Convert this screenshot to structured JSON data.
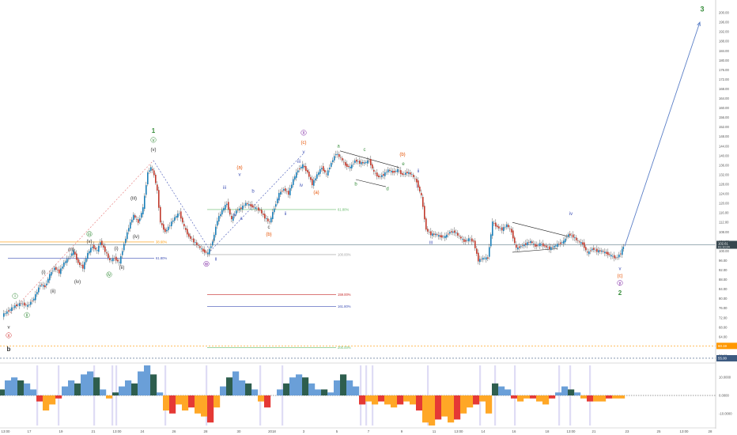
{
  "chart_data": {
    "type": "line",
    "subtype": "candlestick",
    "title": "",
    "xlabel": "",
    "ylabel": "",
    "ylim": [
      54,
      204
    ],
    "y_ticks": [
      56.0,
      60.0,
      64.0,
      68.0,
      72.0,
      76.0,
      80.0,
      84.0,
      88.0,
      92.0,
      96.0,
      100.0,
      104.0,
      108.0,
      112.0,
      116.0,
      120.0,
      124.0,
      128.0,
      132.0,
      136.0,
      140.0,
      144.0,
      148.0,
      152.0,
      156.0,
      160.0,
      164.0,
      168.0,
      172.0,
      176.0,
      180.0,
      184.0,
      188.0,
      192.0,
      196.0,
      200.0
    ],
    "y_tick_labels": [
      "56.00",
      "60.00",
      "64.00",
      "68.00",
      "72.00",
      "76.00",
      "80.00",
      "84.00",
      "88.00",
      "92.00",
      "96.00",
      "100.00",
      "104.00",
      "108.00",
      "112.00",
      "116.00",
      "120.00",
      "124.00",
      "128.00",
      "132.00",
      "136.00",
      "140.00",
      "144.00",
      "148.00",
      "152.00",
      "156.00",
      "160.00",
      "164.00",
      "168.00",
      "172.00",
      "176.00",
      "180.00",
      "184.00",
      "188.00",
      "192.00",
      "196.00",
      "200.00"
    ],
    "x_range": [
      0,
      910
    ],
    "x_ticks": [
      {
        "label": "13:00",
        "x": 7
      },
      {
        "label": "17",
        "x": 37
      },
      {
        "label": "19",
        "x": 77
      },
      {
        "label": "21",
        "x": 118
      },
      {
        "label": "13:00",
        "x": 148
      },
      {
        "label": "24",
        "x": 180
      },
      {
        "label": "26",
        "x": 220
      },
      {
        "label": "28",
        "x": 260
      },
      {
        "label": "30",
        "x": 302
      },
      {
        "label": "2018",
        "x": 344
      },
      {
        "label": "3",
        "x": 384
      },
      {
        "label": "5",
        "x": 426
      },
      {
        "label": "7",
        "x": 466
      },
      {
        "label": "9",
        "x": 508
      },
      {
        "label": "11",
        "x": 549
      },
      {
        "label": "13:00",
        "x": 580
      },
      {
        "label": "14",
        "x": 611
      },
      {
        "label": "16",
        "x": 650
      },
      {
        "label": "18",
        "x": 692
      },
      {
        "label": "13:00",
        "x": 722
      },
      {
        "label": "21",
        "x": 751
      },
      {
        "label": "23",
        "x": 793
      },
      {
        "label": "25",
        "x": 833
      },
      {
        "label": "13:00",
        "x": 865
      },
      {
        "label": "28",
        "x": 898
      }
    ],
    "price_path": [
      [
        4,
        73
      ],
      [
        12,
        75
      ],
      [
        20,
        77
      ],
      [
        28,
        78
      ],
      [
        36,
        77
      ],
      [
        44,
        80
      ],
      [
        52,
        86
      ],
      [
        58,
        85
      ],
      [
        64,
        90
      ],
      [
        70,
        93
      ],
      [
        76,
        91
      ],
      [
        82,
        95
      ],
      [
        88,
        97
      ],
      [
        94,
        100
      ],
      [
        100,
        95
      ],
      [
        106,
        93
      ],
      [
        112,
        99
      ],
      [
        118,
        102
      ],
      [
        124,
        100
      ],
      [
        128,
        104
      ],
      [
        134,
        100
      ],
      [
        140,
        96
      ],
      [
        146,
        97
      ],
      [
        152,
        95
      ],
      [
        158,
        103
      ],
      [
        164,
        110
      ],
      [
        170,
        115
      ],
      [
        176,
        112
      ],
      [
        182,
        118
      ],
      [
        188,
        133
      ],
      [
        192,
        135
      ],
      [
        196,
        132
      ],
      [
        200,
        125
      ],
      [
        204,
        112
      ],
      [
        210,
        108
      ],
      [
        216,
        111
      ],
      [
        222,
        114
      ],
      [
        228,
        116
      ],
      [
        234,
        110
      ],
      [
        240,
        106
      ],
      [
        246,
        104
      ],
      [
        252,
        102
      ],
      [
        258,
        100
      ],
      [
        264,
        99
      ],
      [
        270,
        104
      ],
      [
        276,
        113
      ],
      [
        282,
        117
      ],
      [
        288,
        120
      ],
      [
        294,
        113
      ],
      [
        300,
        117
      ],
      [
        306,
        118
      ],
      [
        312,
        120
      ],
      [
        318,
        119
      ],
      [
        324,
        118
      ],
      [
        330,
        117
      ],
      [
        336,
        114
      ],
      [
        342,
        112
      ],
      [
        348,
        118
      ],
      [
        354,
        124
      ],
      [
        360,
        126
      ],
      [
        366,
        124
      ],
      [
        372,
        130
      ],
      [
        378,
        134
      ],
      [
        384,
        136
      ],
      [
        390,
        133
      ],
      [
        396,
        128
      ],
      [
        402,
        132
      ],
      [
        408,
        135
      ],
      [
        414,
        132
      ],
      [
        420,
        137
      ],
      [
        426,
        141
      ],
      [
        432,
        139
      ],
      [
        438,
        136
      ],
      [
        444,
        135
      ],
      [
        450,
        138
      ],
      [
        456,
        137
      ],
      [
        462,
        137
      ],
      [
        468,
        138
      ],
      [
        474,
        133
      ],
      [
        480,
        131
      ],
      [
        486,
        132
      ],
      [
        492,
        134
      ],
      [
        498,
        133
      ],
      [
        504,
        134
      ],
      [
        510,
        132
      ],
      [
        516,
        133
      ],
      [
        522,
        132
      ],
      [
        528,
        129
      ],
      [
        534,
        123
      ],
      [
        540,
        109
      ],
      [
        546,
        107
      ],
      [
        552,
        107
      ],
      [
        558,
        106
      ],
      [
        564,
        106
      ],
      [
        570,
        108
      ],
      [
        576,
        108
      ],
      [
        582,
        106
      ],
      [
        588,
        104
      ],
      [
        594,
        105
      ],
      [
        600,
        104
      ],
      [
        606,
        96
      ],
      [
        612,
        97
      ],
      [
        618,
        97
      ],
      [
        624,
        112
      ],
      [
        630,
        110
      ],
      [
        636,
        109
      ],
      [
        642,
        111
      ],
      [
        648,
        108
      ],
      [
        654,
        101
      ],
      [
        660,
        102
      ],
      [
        666,
        103
      ],
      [
        672,
        104
      ],
      [
        678,
        102
      ],
      [
        684,
        103
      ],
      [
        690,
        102
      ],
      [
        696,
        101
      ],
      [
        702,
        102
      ],
      [
        708,
        103
      ],
      [
        714,
        104
      ],
      [
        720,
        107
      ],
      [
        726,
        106
      ],
      [
        732,
        104
      ],
      [
        738,
        103
      ],
      [
        744,
        99
      ],
      [
        750,
        101
      ],
      [
        756,
        100
      ],
      [
        762,
        100
      ],
      [
        768,
        99
      ],
      [
        774,
        98
      ],
      [
        780,
        97
      ],
      [
        786,
        99
      ],
      [
        789,
        102
      ]
    ],
    "projection": {
      "from": [
        790,
        102
      ],
      "to": [
        885,
        196
      ],
      "label": "3"
    },
    "current_price": {
      "label": "102.61",
      "sub": "01:10:24",
      "value": 102.61
    },
    "price_markers": [
      {
        "label": "60.19",
        "value": 60.19,
        "color": "#ff9800"
      },
      {
        "label": "55.00",
        "value": 55.0,
        "color": "#3d5a80"
      }
    ],
    "fib_levels": [
      {
        "label": "38.60%",
        "value": 103.8,
        "x1": 0,
        "x2": 195,
        "color": "#ff9800"
      },
      {
        "label": "61.80%",
        "value": 96.9,
        "x1": 10,
        "x2": 195,
        "color": "#3f51b5"
      },
      {
        "label": "61.80%",
        "value": 117.4,
        "x1": 262,
        "x2": 425,
        "color": "#66bb6a"
      },
      {
        "label": "100.00%",
        "value": 98.5,
        "x1": 262,
        "x2": 425,
        "color": "#9e9e9e"
      },
      {
        "label": "159.00%",
        "value": 81.7,
        "x1": 262,
        "x2": 425,
        "color": "#c62828"
      },
      {
        "label": "161.80%",
        "value": 76.8,
        "x1": 262,
        "x2": 425,
        "color": "#3f51b5"
      },
      {
        "label": "200.00%",
        "value": 59.4,
        "x1": 262,
        "x2": 425,
        "color": "#66bb6a"
      }
    ],
    "wave_labels": [
      {
        "t": "v",
        "x": 11,
        "v": 67.5,
        "c": "#333333",
        "s": 6
      },
      {
        "t": "x",
        "x": 11,
        "v": 64.0,
        "c": "#d32f2f",
        "s": 6,
        "circ": true
      },
      {
        "t": "b",
        "x": 11,
        "v": 58.0,
        "c": "#333333",
        "s": 8,
        "bold": true
      },
      {
        "t": "i",
        "x": 19,
        "v": 80.5,
        "c": "#388e3c",
        "s": 6,
        "circ": true
      },
      {
        "t": "ii",
        "x": 34,
        "v": 72.5,
        "c": "#388e3c",
        "s": 6,
        "circ": true
      },
      {
        "t": "(i)",
        "x": 55,
        "v": 90.5,
        "c": "#333333",
        "s": 6
      },
      {
        "t": "(ii)",
        "x": 67,
        "v": 82.5,
        "c": "#333333",
        "s": 6
      },
      {
        "t": "(iii)",
        "x": 90,
        "v": 100.0,
        "c": "#333333",
        "s": 6
      },
      {
        "t": "(iv)",
        "x": 98,
        "v": 86.5,
        "c": "#333333",
        "s": 6
      },
      {
        "t": "iii",
        "x": 113,
        "v": 106.5,
        "c": "#388e3c",
        "s": 6,
        "circ": true
      },
      {
        "t": "(v)",
        "x": 113,
        "v": 103.5,
        "c": "#333333",
        "s": 6
      },
      {
        "t": "(i)",
        "x": 147,
        "v": 100.5,
        "c": "#333333",
        "s": 6
      },
      {
        "t": "(ii)",
        "x": 154,
        "v": 92.5,
        "c": "#333333",
        "s": 6
      },
      {
        "t": "iv",
        "x": 138,
        "v": 89.5,
        "c": "#388e3c",
        "s": 6,
        "circ": true
      },
      {
        "t": "(iii)",
        "x": 169,
        "v": 121.5,
        "c": "#333333",
        "s": 6
      },
      {
        "t": "(iv)",
        "x": 172,
        "v": 105.5,
        "c": "#333333",
        "s": 6
      },
      {
        "t": "1",
        "x": 194,
        "v": 149.5,
        "c": "#388e3c",
        "s": 8,
        "bold": true
      },
      {
        "t": "v",
        "x": 194,
        "v": 146.0,
        "c": "#388e3c",
        "s": 6,
        "circ": true
      },
      {
        "t": "(v)",
        "x": 194,
        "v": 142.0,
        "c": "#333333",
        "s": 6
      },
      {
        "t": "i",
        "x": 270,
        "v": 104.0,
        "c": "#333333",
        "s": 6
      },
      {
        "t": "w",
        "x": 261,
        "v": 94.0,
        "c": "#7b1fa2",
        "s": 6,
        "circ": true
      },
      {
        "t": "ii",
        "x": 273,
        "v": 96.0,
        "c": "#3f51b5",
        "s": 6
      },
      {
        "t": "iii",
        "x": 284,
        "v": 126.0,
        "c": "#3f51b5",
        "s": 6
      },
      {
        "t": "iv",
        "x": 297,
        "v": 114.5,
        "c": "#3f51b5",
        "s": 6
      },
      {
        "t": "(a)",
        "x": 303,
        "v": 134.5,
        "c": "#e65100",
        "s": 6
      },
      {
        "t": "v",
        "x": 303,
        "v": 131.5,
        "c": "#3f51b5",
        "s": 6
      },
      {
        "t": "a",
        "x": 305,
        "v": 113.0,
        "c": "#3f51b5",
        "s": 6
      },
      {
        "t": "b",
        "x": 320,
        "v": 124.5,
        "c": "#3f51b5",
        "s": 6
      },
      {
        "t": "c",
        "x": 340,
        "v": 109.5,
        "c": "#333333",
        "s": 6
      },
      {
        "t": "(b)",
        "x": 340,
        "v": 106.5,
        "c": "#e65100",
        "s": 6
      },
      {
        "t": "ii",
        "x": 361,
        "v": 115.0,
        "c": "#3f51b5",
        "s": 6
      },
      {
        "t": "i",
        "x": 353,
        "v": 121.0,
        "c": "#3f51b5",
        "s": 6
      },
      {
        "t": "x",
        "x": 384,
        "v": 149.0,
        "c": "#7b1fa2",
        "s": 6,
        "circ": true
      },
      {
        "t": "(c)",
        "x": 384,
        "v": 145.0,
        "c": "#e65100",
        "s": 6
      },
      {
        "t": "v",
        "x": 384,
        "v": 141.0,
        "c": "#3f51b5",
        "s": 6
      },
      {
        "t": "iii",
        "x": 378,
        "v": 137.0,
        "c": "#3f51b5",
        "s": 6
      },
      {
        "t": "iv",
        "x": 381,
        "v": 127.0,
        "c": "#3f51b5",
        "s": 6
      },
      {
        "t": "(a)",
        "x": 400,
        "v": 124.0,
        "c": "#e65100",
        "s": 6
      },
      {
        "t": "a",
        "x": 428,
        "v": 143.5,
        "c": "#388e3c",
        "s": 6
      },
      {
        "t": "c",
        "x": 461,
        "v": 142.0,
        "c": "#388e3c",
        "s": 6
      },
      {
        "t": "b",
        "x": 450,
        "v": 127.5,
        "c": "#388e3c",
        "s": 6
      },
      {
        "t": "(b)",
        "x": 509,
        "v": 140.0,
        "c": "#e65100",
        "s": 6
      },
      {
        "t": "e",
        "x": 510,
        "v": 136.0,
        "c": "#388e3c",
        "s": 6
      },
      {
        "t": "d",
        "x": 490,
        "v": 125.5,
        "c": "#388e3c",
        "s": 6
      },
      {
        "t": "ii",
        "x": 529,
        "v": 133.0,
        "c": "#3f51b5",
        "s": 6
      },
      {
        "t": "i",
        "x": 527,
        "v": 126.5,
        "c": "#3f51b5",
        "s": 6
      },
      {
        "t": "iii",
        "x": 545,
        "v": 103.0,
        "c": "#3f51b5",
        "s": 6
      },
      {
        "t": "iv",
        "x": 722,
        "v": 115.0,
        "c": "#3f51b5",
        "s": 6
      },
      {
        "t": "v",
        "x": 784,
        "v": 92.0,
        "c": "#3f51b5",
        "s": 6
      },
      {
        "t": "(c)",
        "x": 784,
        "v": 89.0,
        "c": "#e65100",
        "s": 6
      },
      {
        "t": "y",
        "x": 784,
        "v": 86.0,
        "c": "#7b1fa2",
        "s": 6,
        "circ": true
      },
      {
        "t": "2",
        "x": 784,
        "v": 81.5,
        "c": "#388e3c",
        "s": 8,
        "bold": true
      },
      {
        "t": "3",
        "x": 888,
        "v": 200.5,
        "c": "#388e3c",
        "s": 9,
        "bold": true
      }
    ],
    "oscillator": {
      "ylim": [
        -1,
        1
      ],
      "tick_labels": [
        "10.0000",
        "0.0000",
        "-10.0000"
      ],
      "x": [
        2,
        10,
        18,
        26,
        34,
        42,
        50,
        58,
        66,
        74,
        82,
        90,
        98,
        106,
        114,
        122,
        130,
        138,
        146,
        154,
        162,
        170,
        178,
        186,
        194,
        202,
        210,
        218,
        226,
        234,
        242,
        250,
        258,
        266,
        274,
        282,
        290,
        298,
        306,
        314,
        322,
        330,
        338,
        346,
        354,
        362,
        370,
        378,
        386,
        394,
        402,
        410,
        418,
        426,
        434,
        442,
        450,
        458,
        466,
        474,
        482,
        490,
        498,
        506,
        514,
        522,
        530,
        538,
        546,
        554,
        562,
        570,
        578,
        586,
        594,
        602,
        610,
        618,
        626,
        634,
        642,
        650,
        658,
        666,
        674,
        682,
        690,
        698,
        706,
        714,
        722,
        730,
        738,
        746,
        754,
        762,
        770,
        778,
        786
      ],
      "values": [
        0.2,
        0.5,
        0.6,
        0.5,
        0.4,
        0.2,
        -0.2,
        -0.5,
        -0.3,
        -0.1,
        0.3,
        0.5,
        0.4,
        0.7,
        0.8,
        0.6,
        0.2,
        -0.1,
        0.1,
        0.3,
        0.5,
        0.4,
        0.8,
        1.0,
        0.7,
        0.1,
        -0.5,
        -0.6,
        -0.3,
        -0.5,
        -0.4,
        -0.6,
        -0.7,
        -0.9,
        -0.4,
        0.3,
        0.6,
        0.8,
        0.5,
        0.4,
        0.2,
        -0.2,
        -0.4,
        0.0,
        0.2,
        0.4,
        0.6,
        0.7,
        0.6,
        0.4,
        0.2,
        0.2,
        0.1,
        0.5,
        0.7,
        0.5,
        0.3,
        -0.3,
        -0.2,
        -0.3,
        -0.2,
        -0.3,
        -0.4,
        -0.3,
        -0.2,
        -0.3,
        -0.5,
        -0.9,
        -1.0,
        -0.8,
        -0.7,
        -0.9,
        -0.8,
        -0.6,
        -0.4,
        -0.3,
        -0.2,
        -0.6,
        0.4,
        0.3,
        0.2,
        -0.1,
        -0.2,
        -0.1,
        -0.1,
        -0.2,
        -0.3,
        -0.1,
        0.1,
        0.3,
        0.2,
        0.1,
        -0.1,
        -0.2,
        -0.2,
        -0.2,
        -0.1,
        -0.1,
        -0.1
      ]
    },
    "grid": false,
    "legend": "none"
  }
}
